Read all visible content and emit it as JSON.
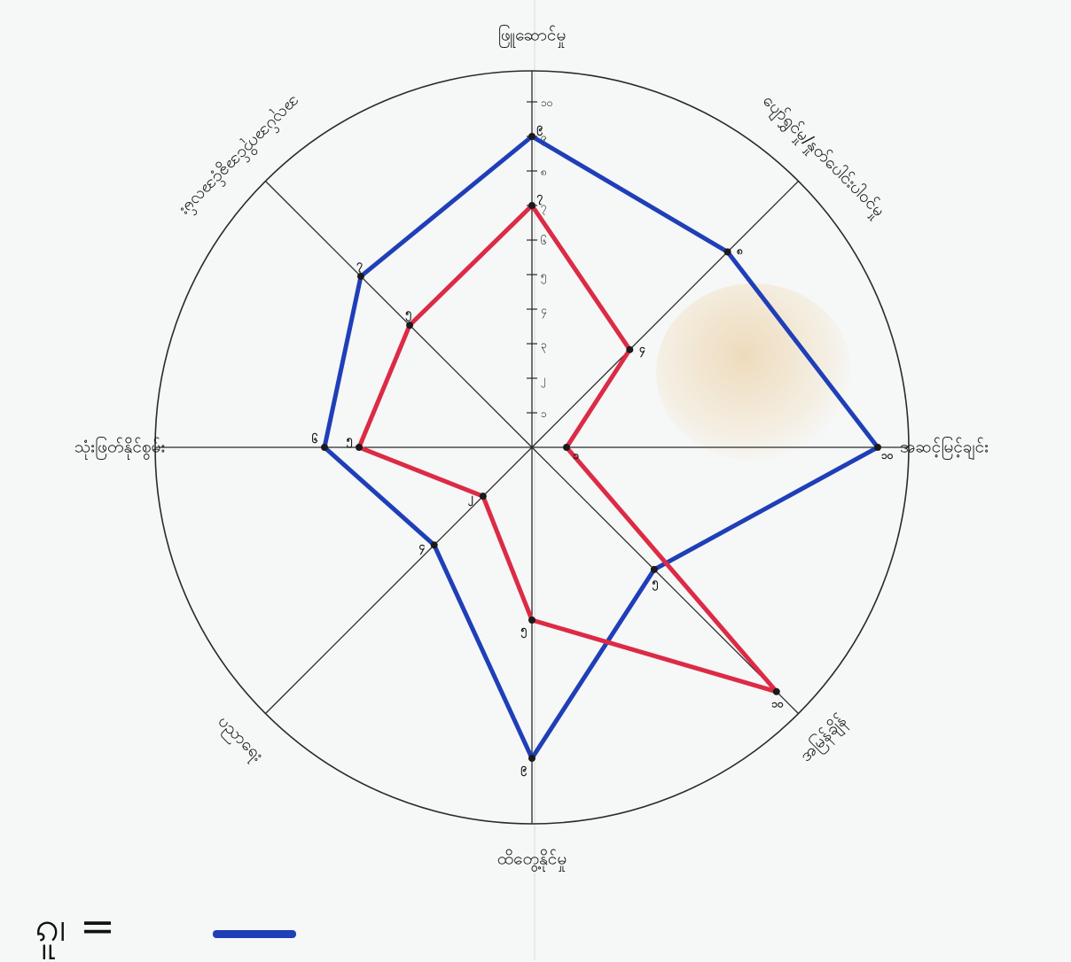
{
  "chart_data": {
    "type": "radar",
    "title": "",
    "axes": [
      "ဖြူဆောင်မှု",
      "ပျော်ရွှင်မှု/နှုတ်ပေါင်းပါဝင်မှု",
      "အဆင့်မြင့်ချင်း",
      "အမြန်ချိန်",
      "ထိတွေ့နိုင်မှု",
      "ပညာရေး",
      "သုံးဖြတ်နိုင်စွမ်း",
      "အလုပ်အကိုင်အခွင့်အလမ်း"
    ],
    "range": [
      0,
      10
    ],
    "ticks": [
      "၁",
      "၂",
      "၃",
      "၄",
      "၅",
      "၆",
      "၇",
      "၈",
      "၉",
      "၁၀"
    ],
    "series": [
      {
        "color": "#1f3fb8",
        "values": [
          9,
          8,
          10,
          5,
          9,
          4,
          6,
          7
        ],
        "labels": [
          "၉",
          "၈",
          "၁၀",
          "၅",
          "၉",
          "၄",
          "၆",
          "၇"
        ]
      },
      {
        "color": "#dc2b45",
        "values": [
          7,
          4,
          1,
          10,
          5,
          2,
          5,
          5
        ],
        "labels": [
          "၇",
          "၄",
          "၁",
          "၁၀",
          "၅",
          "၂",
          "၅",
          "၅"
        ]
      }
    ],
    "grid": true,
    "legend": "bottom-left"
  },
  "legend": {
    "label": "ၵူ၊ = "
  }
}
